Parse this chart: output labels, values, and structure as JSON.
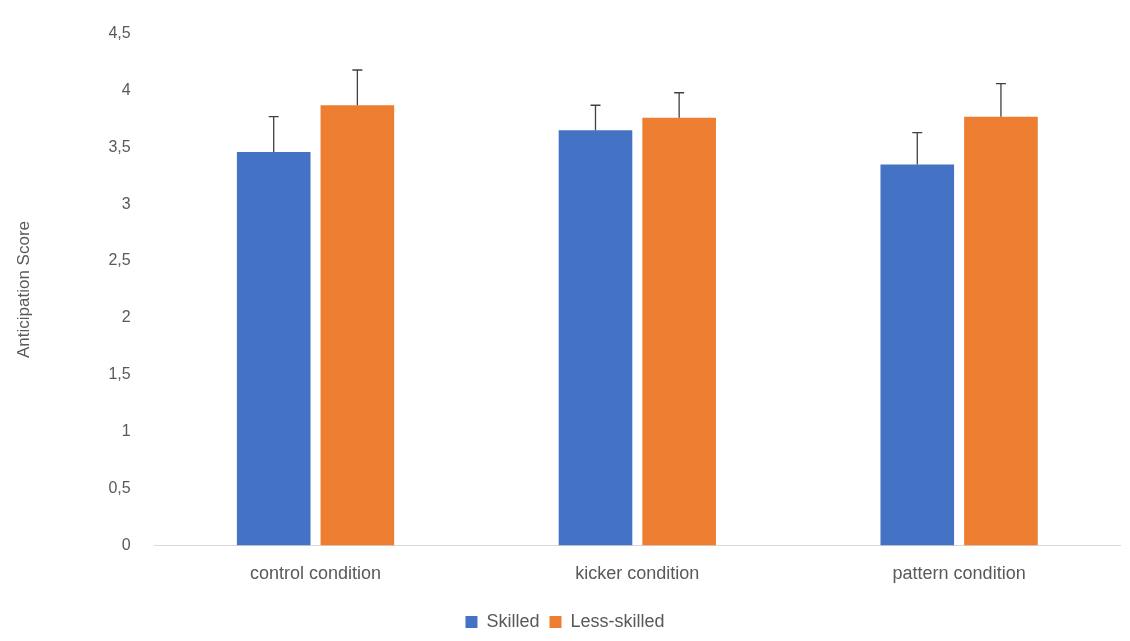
{
  "chart_data": {
    "type": "bar",
    "ylabel": "Anticipation Score",
    "categories": [
      "control condition",
      "kicker condition",
      "pattern condition"
    ],
    "series": [
      {
        "name": "Skilled",
        "color": "#4472c4",
        "values": [
          3.46,
          3.65,
          3.35
        ],
        "errors": [
          [
            3.46,
            3.77
          ],
          [
            3.65,
            3.87
          ],
          [
            3.35,
            3.63
          ]
        ]
      },
      {
        "name": "Less-skilled",
        "color": "#ed7d31",
        "values": [
          3.87,
          3.76,
          3.77
        ],
        "errors": [
          [
            3.87,
            4.18
          ],
          [
            3.76,
            3.98
          ],
          [
            3.77,
            4.06
          ]
        ]
      }
    ],
    "ylim": [
      0,
      4.5
    ],
    "yticks": [
      {
        "value": 0,
        "label": "0"
      },
      {
        "value": 0.5,
        "label": "0,5"
      },
      {
        "value": 1,
        "label": "1"
      },
      {
        "value": 1.5,
        "label": "1,5"
      },
      {
        "value": 2,
        "label": "2"
      },
      {
        "value": 2.5,
        "label": "2,5"
      },
      {
        "value": 3,
        "label": "3"
      },
      {
        "value": 3.5,
        "label": "3,5"
      },
      {
        "value": 4,
        "label": "4"
      },
      {
        "value": 4.5,
        "label": "4,5"
      }
    ],
    "grid": false,
    "legend": "bottom"
  }
}
